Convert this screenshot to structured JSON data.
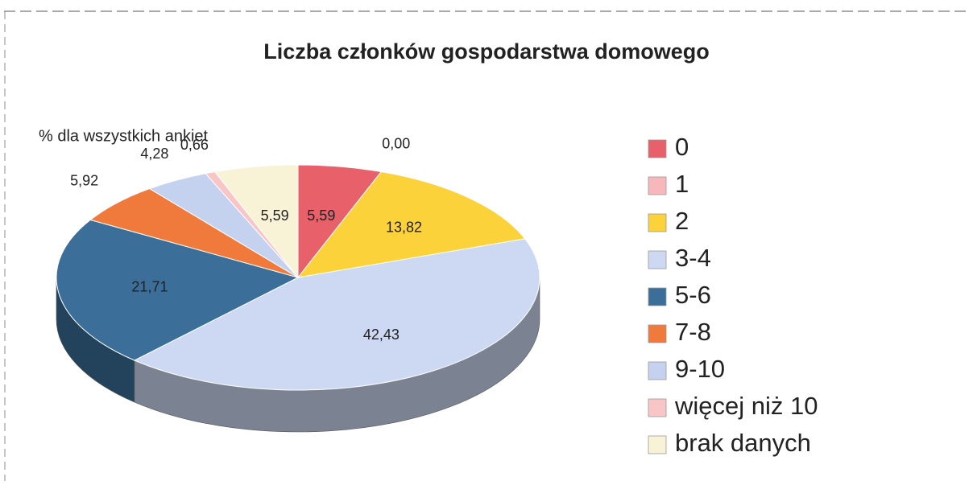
{
  "chart_data": {
    "type": "pie",
    "title": "Liczba członków gospodarstwa domowego",
    "subtitle": "% dla wszystkich ankiet",
    "categories": [
      "0",
      "1",
      "2",
      "3-4",
      "5-6",
      "7-8",
      "9-10",
      "więcej niż 10",
      "brak danych"
    ],
    "values": [
      5.59,
      0.0,
      13.82,
      42.43,
      21.71,
      5.92,
      4.28,
      0.66,
      5.59
    ],
    "value_labels": [
      "5,59",
      "0,00",
      "13,82",
      "42,43",
      "21,71",
      "5,92",
      "4,28",
      "0,66",
      "5,59"
    ],
    "colors": [
      "#e8606a",
      "#f7b8bc",
      "#fcd23a",
      "#cdd9f2",
      "#3b6f9a",
      "#f07a3c",
      "#c5d2ef",
      "#f9c6c8",
      "#f8f3d6"
    ],
    "legend": "right"
  }
}
